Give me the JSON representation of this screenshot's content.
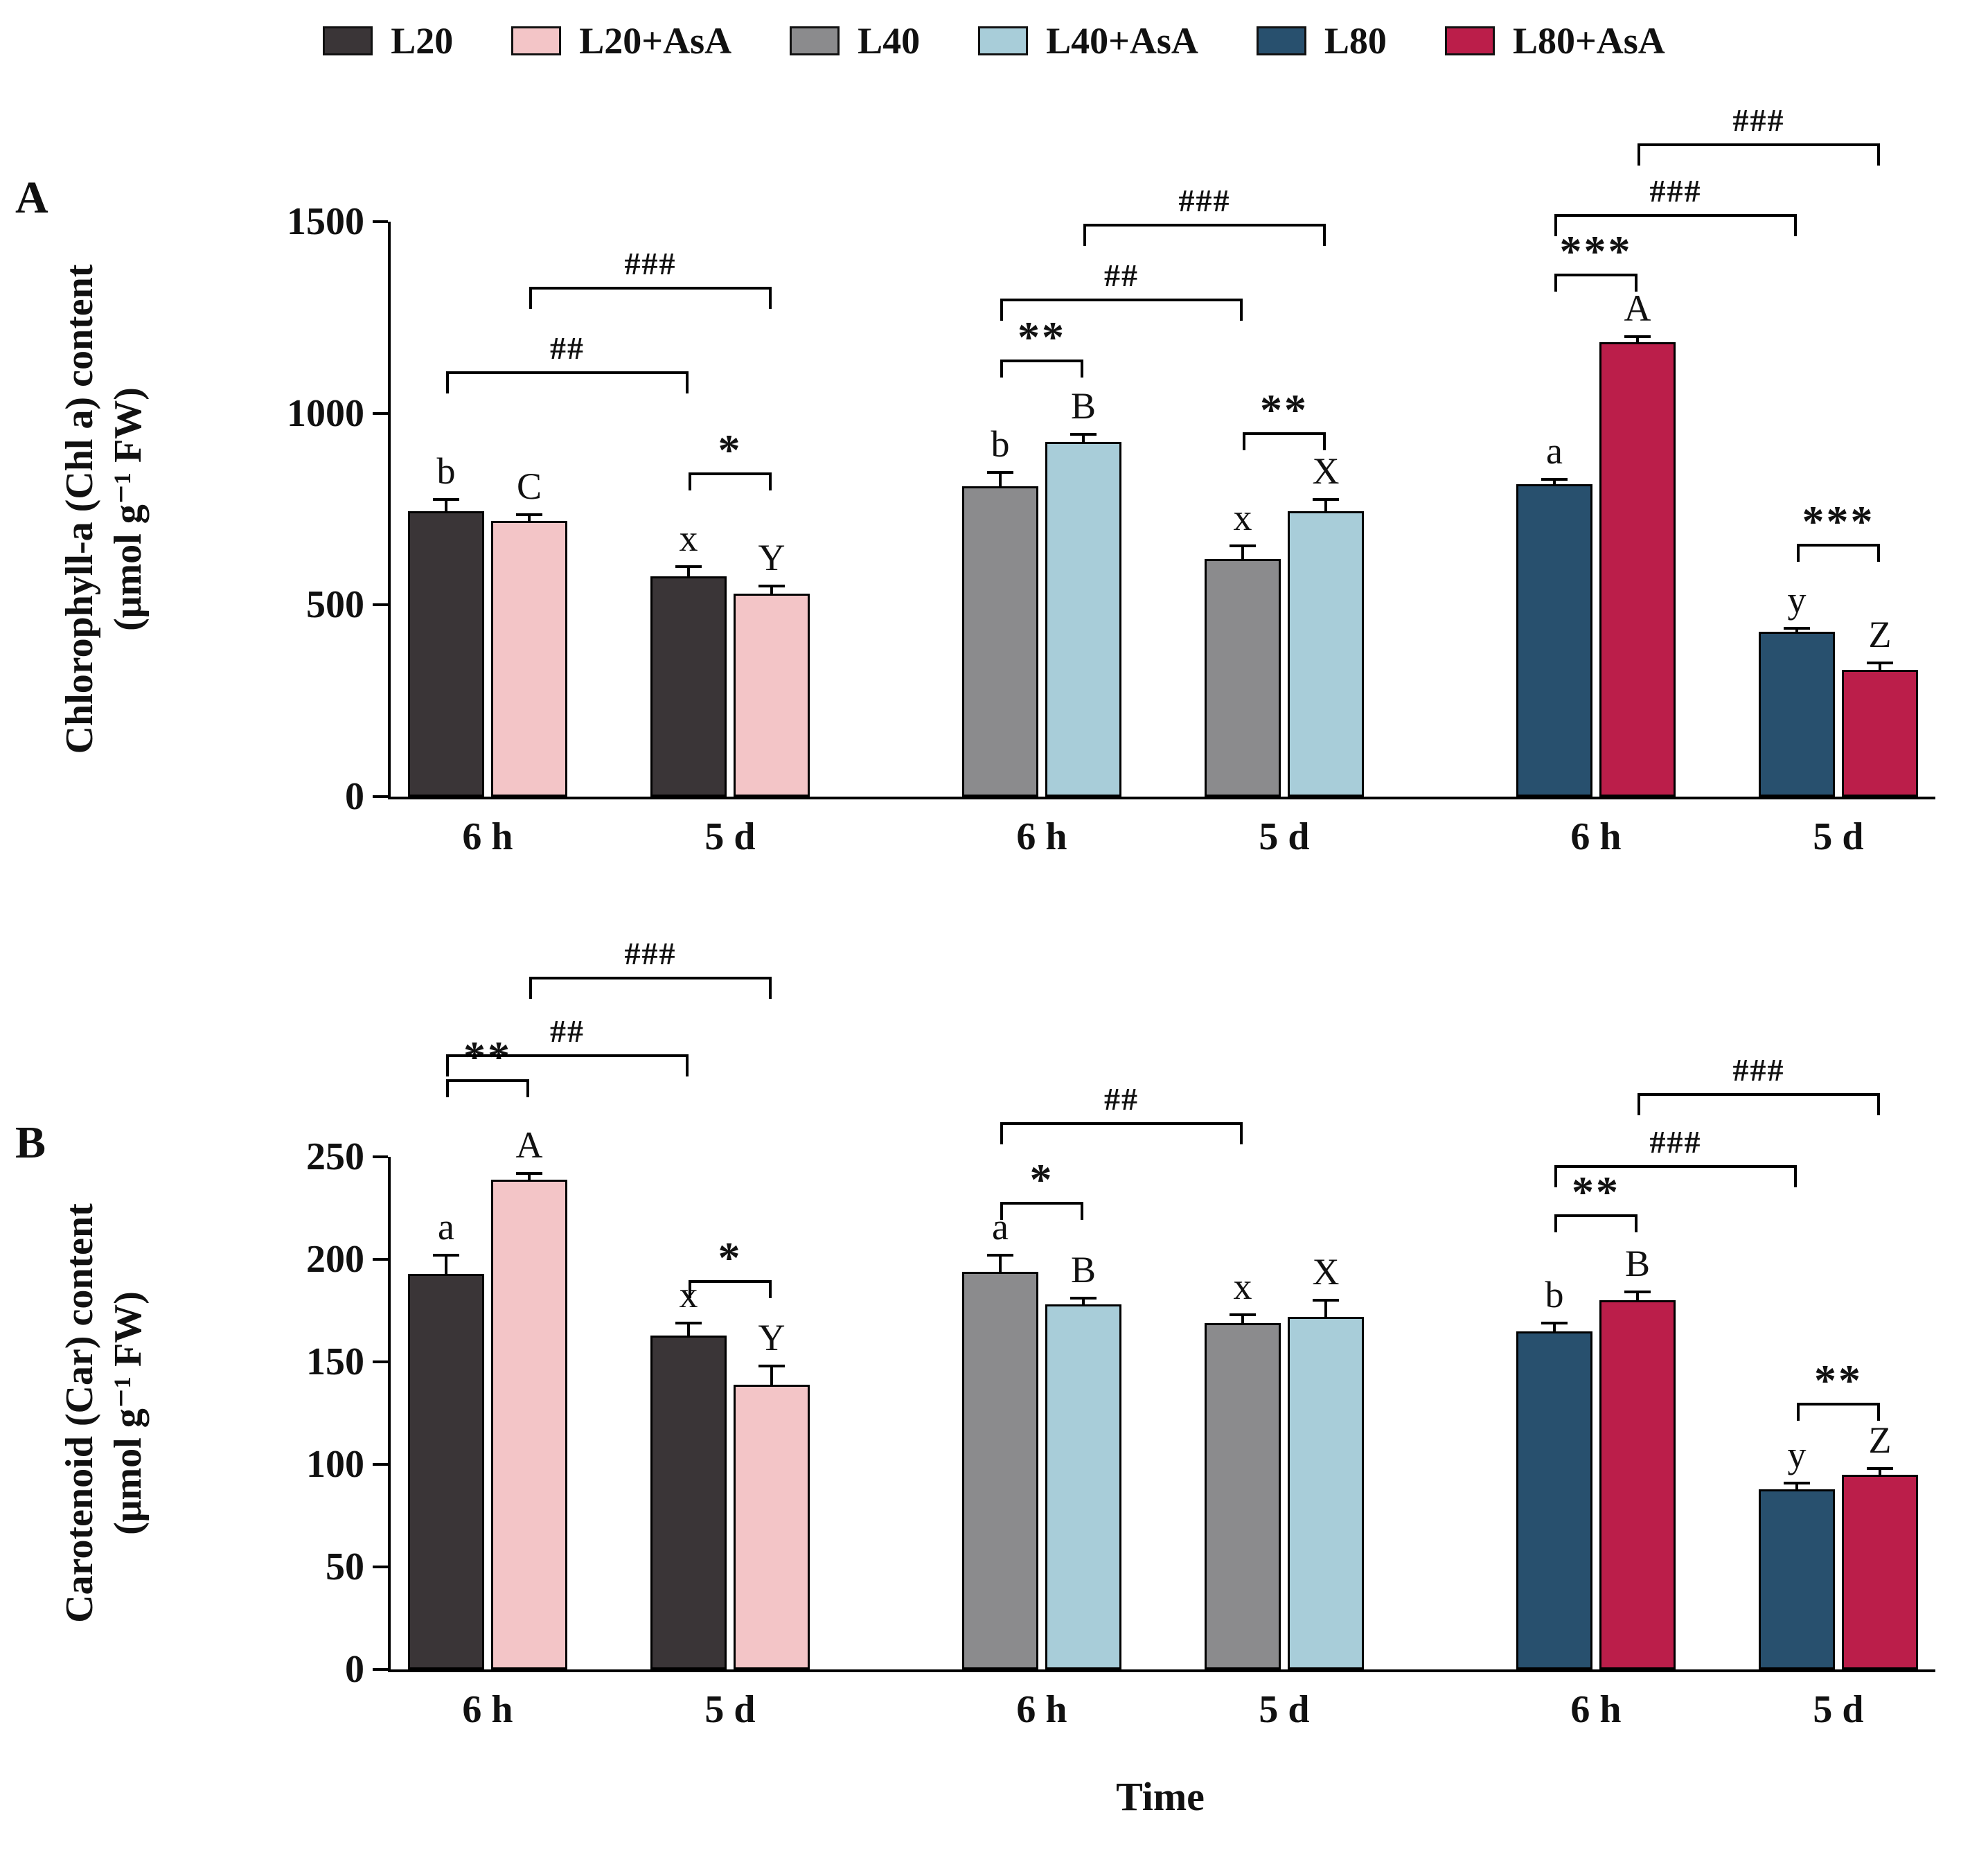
{
  "legend": {
    "items": [
      {
        "label": "L20",
        "color": "#3a3537"
      },
      {
        "label": "L20+AsA",
        "color": "#f3c5c7"
      },
      {
        "label": "L40",
        "color": "#8b8b8d"
      },
      {
        "label": "L40+AsA",
        "color": "#a8cdd9"
      },
      {
        "label": "L80",
        "color": "#28506e"
      },
      {
        "label": "L80+AsA",
        "color": "#bb1e4a"
      }
    ]
  },
  "xlabel": "Time",
  "chart_data": [
    {
      "type": "bar",
      "panel_letter": "A",
      "ylabel": [
        "Chlorophyll-a (Chl a) content",
        "(μmol g⁻¹ FW)"
      ],
      "ylim": [
        0,
        1500
      ],
      "yticks": [
        0,
        500,
        1000,
        1500
      ],
      "groups": [
        {
          "x_label": "6 h",
          "pair_sig": null,
          "pair_sig_y": null,
          "bars": [
            {
              "series": "L20",
              "value": 745,
              "error": 30,
              "letter": "b"
            },
            {
              "series": "L20+AsA",
              "value": 720,
              "error": 15,
              "letter": "C"
            }
          ]
        },
        {
          "x_label": "5 d",
          "pair_sig": "*",
          "pair_sig_y": 845,
          "bars": [
            {
              "series": "L20",
              "value": 575,
              "error": 25,
              "letter": "x"
            },
            {
              "series": "L20+AsA",
              "value": 530,
              "error": 20,
              "letter": "Y"
            }
          ]
        },
        {
          "x_label": "6 h",
          "pair_sig": "**",
          "pair_sig_y": 1140,
          "bars": [
            {
              "series": "L40",
              "value": 810,
              "error": 35,
              "letter": "b"
            },
            {
              "series": "L40+AsA",
              "value": 925,
              "error": 20,
              "letter": "B"
            }
          ]
        },
        {
          "x_label": "5 d",
          "pair_sig": "**",
          "pair_sig_y": 950,
          "bars": [
            {
              "series": "L40",
              "value": 620,
              "error": 35,
              "letter": "x"
            },
            {
              "series": "L40+AsA",
              "value": 745,
              "error": 30,
              "letter": "X"
            }
          ]
        },
        {
          "x_label": "6 h",
          "pair_sig": "***",
          "pair_sig_y": 1365,
          "bars": [
            {
              "series": "L80",
              "value": 815,
              "error": 12,
              "letter": "a"
            },
            {
              "series": "L80+AsA",
              "value": 1185,
              "error": 15,
              "letter": "A"
            }
          ]
        },
        {
          "x_label": "5 d",
          "pair_sig": "***",
          "pair_sig_y": 660,
          "bars": [
            {
              "series": "L80",
              "value": 430,
              "error": 10,
              "letter": "y"
            },
            {
              "series": "L80+AsA",
              "value": 330,
              "error": 18,
              "letter": "Z"
            }
          ]
        }
      ],
      "comparison_brackets": [
        {
          "from_group": 0,
          "from_bar": 0,
          "to_group": 1,
          "to_bar": 0,
          "label": "##",
          "y": 1110
        },
        {
          "from_group": 0,
          "from_bar": 1,
          "to_group": 1,
          "to_bar": 1,
          "label": "###",
          "y": 1330
        },
        {
          "from_group": 2,
          "from_bar": 0,
          "to_group": 3,
          "to_bar": 0,
          "label": "##",
          "y": 1300
        },
        {
          "from_group": 2,
          "from_bar": 1,
          "to_group": 3,
          "to_bar": 1,
          "label": "###",
          "y": 1495
        },
        {
          "from_group": 4,
          "from_bar": 0,
          "to_group": 5,
          "to_bar": 0,
          "label": "###",
          "y": 1520
        },
        {
          "from_group": 4,
          "from_bar": 1,
          "to_group": 5,
          "to_bar": 1,
          "label": "###",
          "y": 1705
        }
      ]
    },
    {
      "type": "bar",
      "panel_letter": "B",
      "ylabel": [
        "Carotenoid (Car) content",
        "(μmol g⁻¹ FW)"
      ],
      "ylim": [
        0,
        250
      ],
      "yticks": [
        0,
        50,
        100,
        150,
        200,
        250
      ],
      "groups": [
        {
          "x_label": "6 h",
          "pair_sig": "**",
          "pair_sig_y": 288,
          "bars": [
            {
              "series": "L20",
              "value": 193,
              "error": 9,
              "letter": "a"
            },
            {
              "series": "L20+AsA",
              "value": 239,
              "error": 3,
              "letter": "A"
            }
          ]
        },
        {
          "x_label": "5 d",
          "pair_sig": "*",
          "pair_sig_y": 190,
          "bars": [
            {
              "series": "L20",
              "value": 163,
              "error": 6,
              "letter": "x"
            },
            {
              "series": "L20+AsA",
              "value": 139,
              "error": 9,
              "letter": "Y"
            }
          ]
        },
        {
          "x_label": "6 h",
          "pair_sig": "*",
          "pair_sig_y": 228,
          "bars": [
            {
              "series": "L40",
              "value": 194,
              "error": 8,
              "letter": "a"
            },
            {
              "series": "L40+AsA",
              "value": 178,
              "error": 3,
              "letter": "B"
            }
          ]
        },
        {
          "x_label": "5 d",
          "pair_sig": null,
          "pair_sig_y": null,
          "bars": [
            {
              "series": "L40",
              "value": 169,
              "error": 4,
              "letter": "x"
            },
            {
              "series": "L40+AsA",
              "value": 172,
              "error": 8,
              "letter": "X"
            }
          ]
        },
        {
          "x_label": "6 h",
          "pair_sig": "**",
          "pair_sig_y": 222,
          "bars": [
            {
              "series": "L80",
              "value": 165,
              "error": 4,
              "letter": "b"
            },
            {
              "series": "L80+AsA",
              "value": 180,
              "error": 4,
              "letter": "B"
            }
          ]
        },
        {
          "x_label": "5 d",
          "pair_sig": "**",
          "pair_sig_y": 130,
          "bars": [
            {
              "series": "L80",
              "value": 88,
              "error": 3,
              "letter": "y"
            },
            {
              "series": "L80+AsA",
              "value": 95,
              "error": 3,
              "letter": "Z"
            }
          ]
        }
      ],
      "comparison_brackets": [
        {
          "from_group": 0,
          "from_bar": 0,
          "to_group": 1,
          "to_bar": 0,
          "label": "##",
          "y": 300
        },
        {
          "from_group": 0,
          "from_bar": 1,
          "to_group": 1,
          "to_bar": 1,
          "label": "###",
          "y": 338
        },
        {
          "from_group": 2,
          "from_bar": 0,
          "to_group": 3,
          "to_bar": 0,
          "label": "##",
          "y": 267
        },
        {
          "from_group": 4,
          "from_bar": 0,
          "to_group": 5,
          "to_bar": 0,
          "label": "###",
          "y": 246
        },
        {
          "from_group": 4,
          "from_bar": 1,
          "to_group": 5,
          "to_bar": 1,
          "label": "###",
          "y": 281
        }
      ]
    }
  ]
}
